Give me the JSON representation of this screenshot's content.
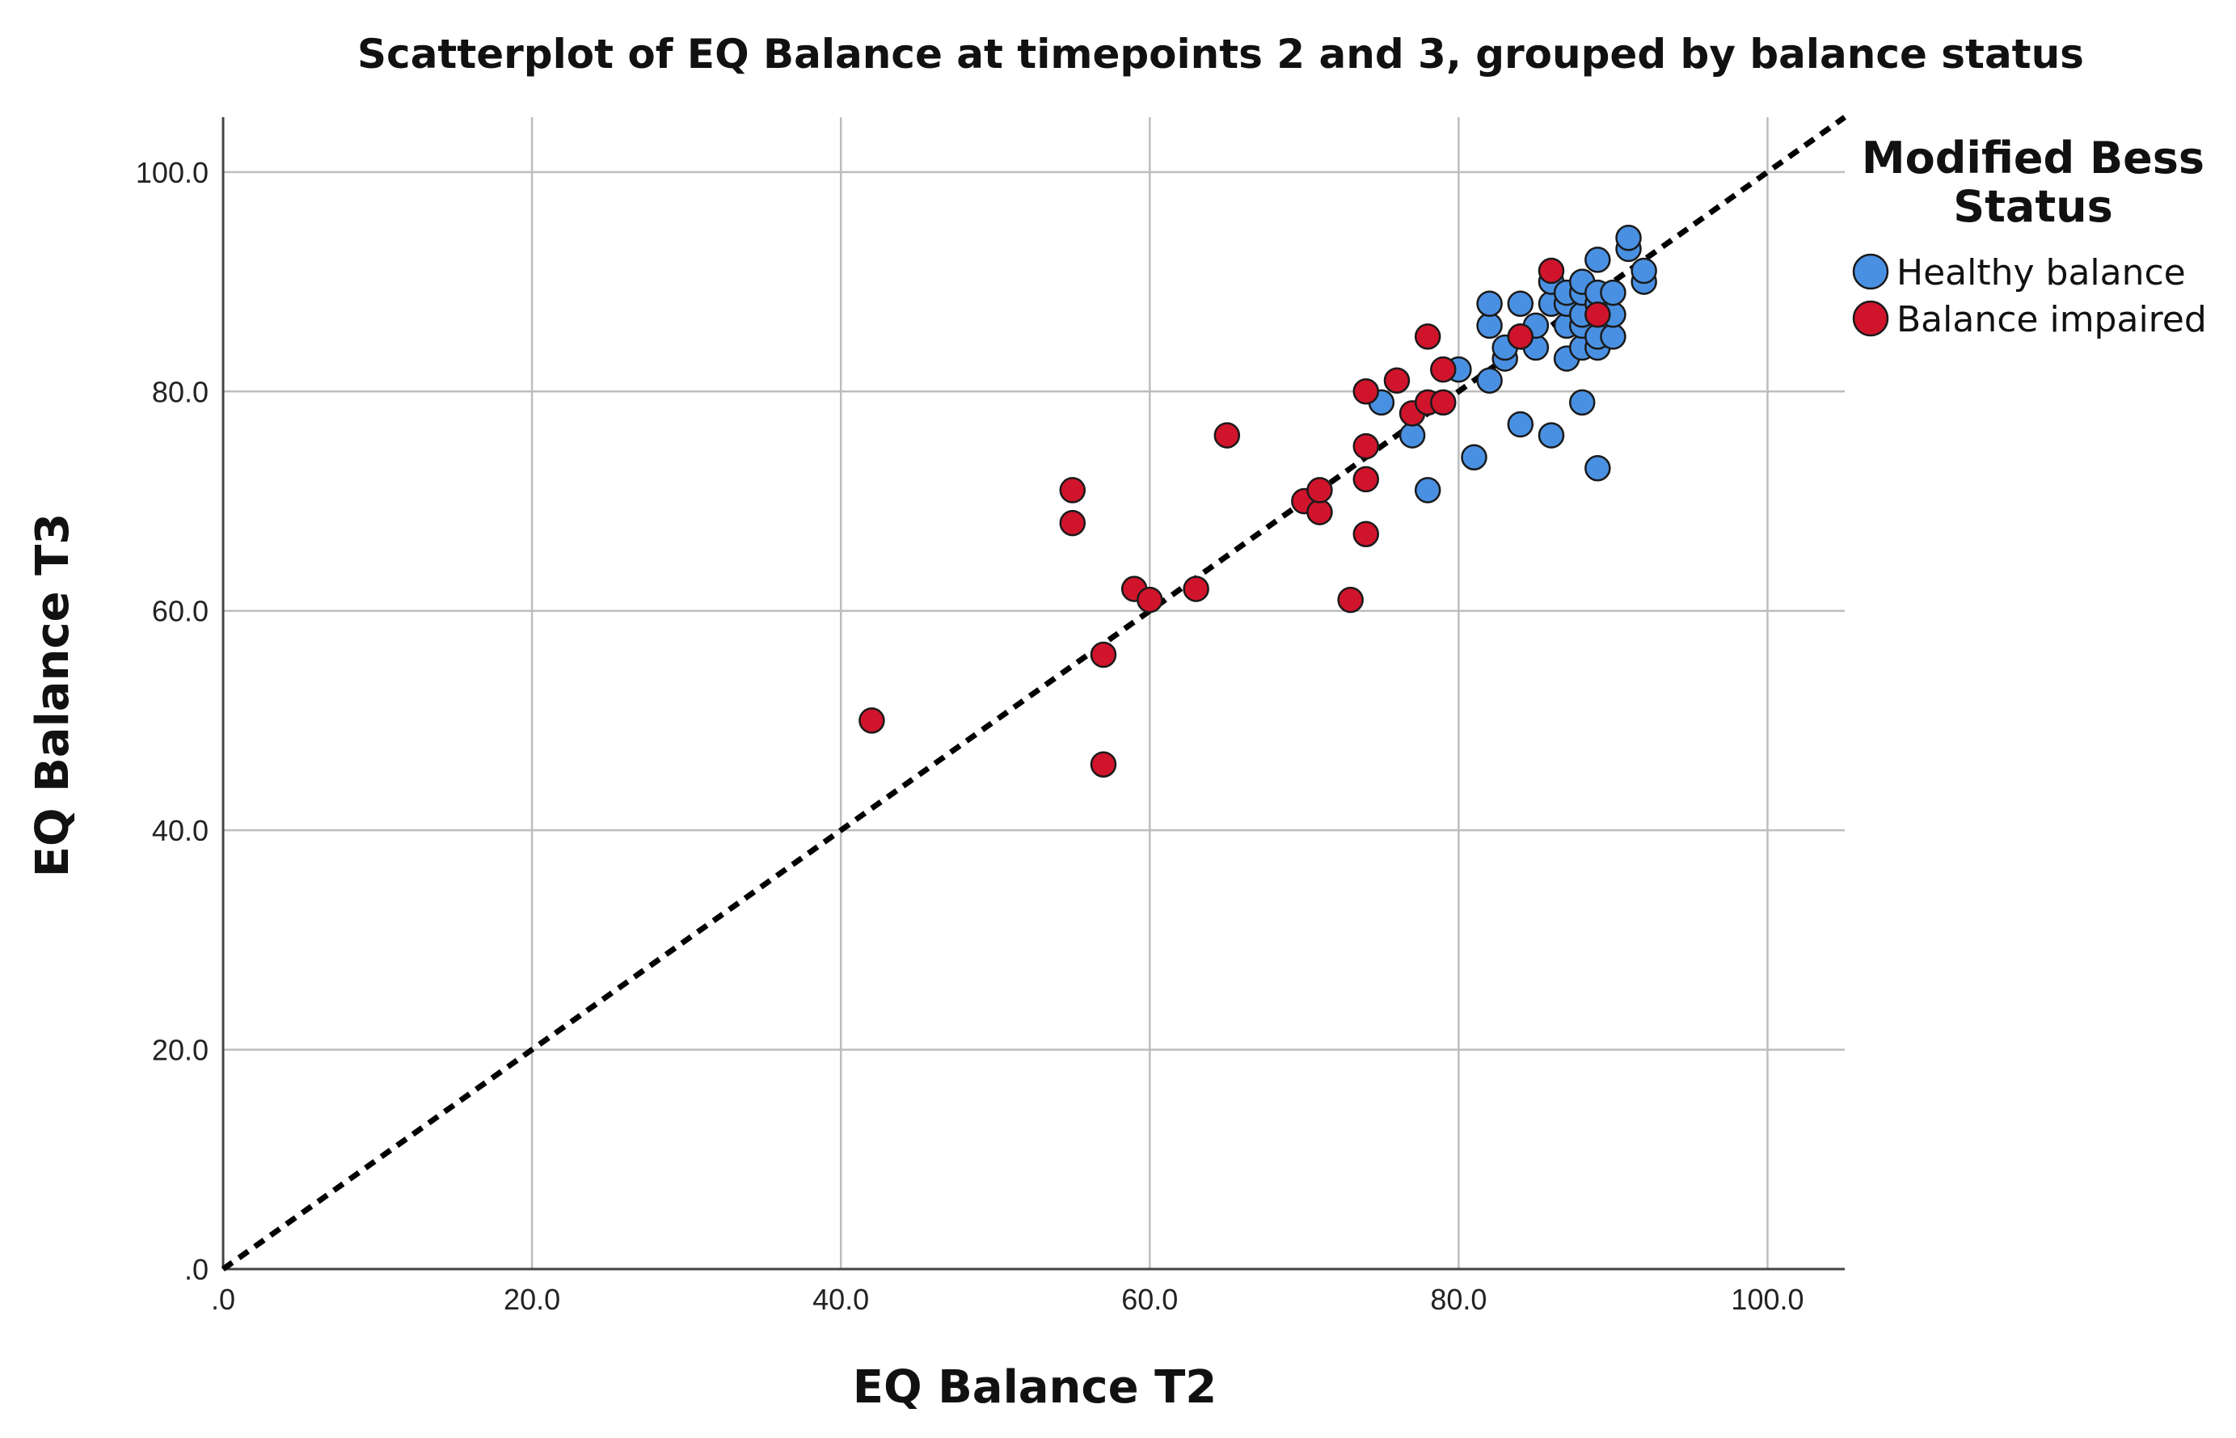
{
  "chart_data": {
    "type": "scatter",
    "title": "Scatterplot of EQ Balance at timepoints 2 and 3, grouped by balance status",
    "xlabel": "EQ Balance T2",
    "ylabel": "EQ Balance T3",
    "xlim": [
      0,
      105
    ],
    "ylim": [
      0,
      105
    ],
    "xticks": [
      0,
      20,
      40,
      60,
      80,
      100
    ],
    "yticks": [
      0,
      20,
      40,
      60,
      80,
      100
    ],
    "xtick_labels": [
      ".0",
      "20.0",
      "40.0",
      "60.0",
      "80.0",
      "100.0"
    ],
    "ytick_labels": [
      ".0",
      "20.0",
      "40.0",
      "60.0",
      "80.0",
      "100.0"
    ],
    "grid": true,
    "reference_line": {
      "style": "dashed",
      "from": [
        0,
        0
      ],
      "to": [
        105,
        105
      ]
    },
    "legend": {
      "title_lines": [
        "Modified Bess",
        "Status"
      ],
      "position": "right"
    },
    "series": [
      {
        "name": "Healthy balance",
        "color": "#4a90e2",
        "points": [
          [
            75,
            79
          ],
          [
            77,
            76
          ],
          [
            78,
            71
          ],
          [
            80,
            82
          ],
          [
            81,
            74
          ],
          [
            82,
            81
          ],
          [
            82,
            86
          ],
          [
            82,
            88
          ],
          [
            83,
            83
          ],
          [
            83,
            84
          ],
          [
            84,
            77
          ],
          [
            84,
            85
          ],
          [
            84,
            88
          ],
          [
            85,
            84
          ],
          [
            85,
            86
          ],
          [
            86,
            76
          ],
          [
            86,
            88
          ],
          [
            86,
            90
          ],
          [
            87,
            83
          ],
          [
            87,
            86
          ],
          [
            87,
            88
          ],
          [
            87,
            89
          ],
          [
            88,
            79
          ],
          [
            88,
            84
          ],
          [
            88,
            86
          ],
          [
            88,
            87
          ],
          [
            88,
            89
          ],
          [
            88,
            90
          ],
          [
            89,
            73
          ],
          [
            89,
            84
          ],
          [
            89,
            85
          ],
          [
            89,
            88
          ],
          [
            89,
            89
          ],
          [
            89,
            92
          ],
          [
            90,
            85
          ],
          [
            90,
            87
          ],
          [
            90,
            89
          ],
          [
            91,
            93
          ],
          [
            91,
            94
          ],
          [
            92,
            90
          ],
          [
            92,
            91
          ]
        ]
      },
      {
        "name": "Balance impaired",
        "color": "#d0142c",
        "points": [
          [
            42,
            50
          ],
          [
            55,
            68
          ],
          [
            55,
            71
          ],
          [
            57,
            46
          ],
          [
            57,
            56
          ],
          [
            59,
            62
          ],
          [
            60,
            61
          ],
          [
            63,
            62
          ],
          [
            65,
            76
          ],
          [
            70,
            70
          ],
          [
            71,
            69
          ],
          [
            71,
            71
          ],
          [
            73,
            61
          ],
          [
            74,
            67
          ],
          [
            74,
            72
          ],
          [
            74,
            75
          ],
          [
            74,
            80
          ],
          [
            76,
            81
          ],
          [
            77,
            78
          ],
          [
            78,
            79
          ],
          [
            78,
            85
          ],
          [
            79,
            79
          ],
          [
            79,
            82
          ],
          [
            84,
            85
          ],
          [
            86,
            91
          ],
          [
            89,
            87
          ]
        ]
      }
    ]
  }
}
